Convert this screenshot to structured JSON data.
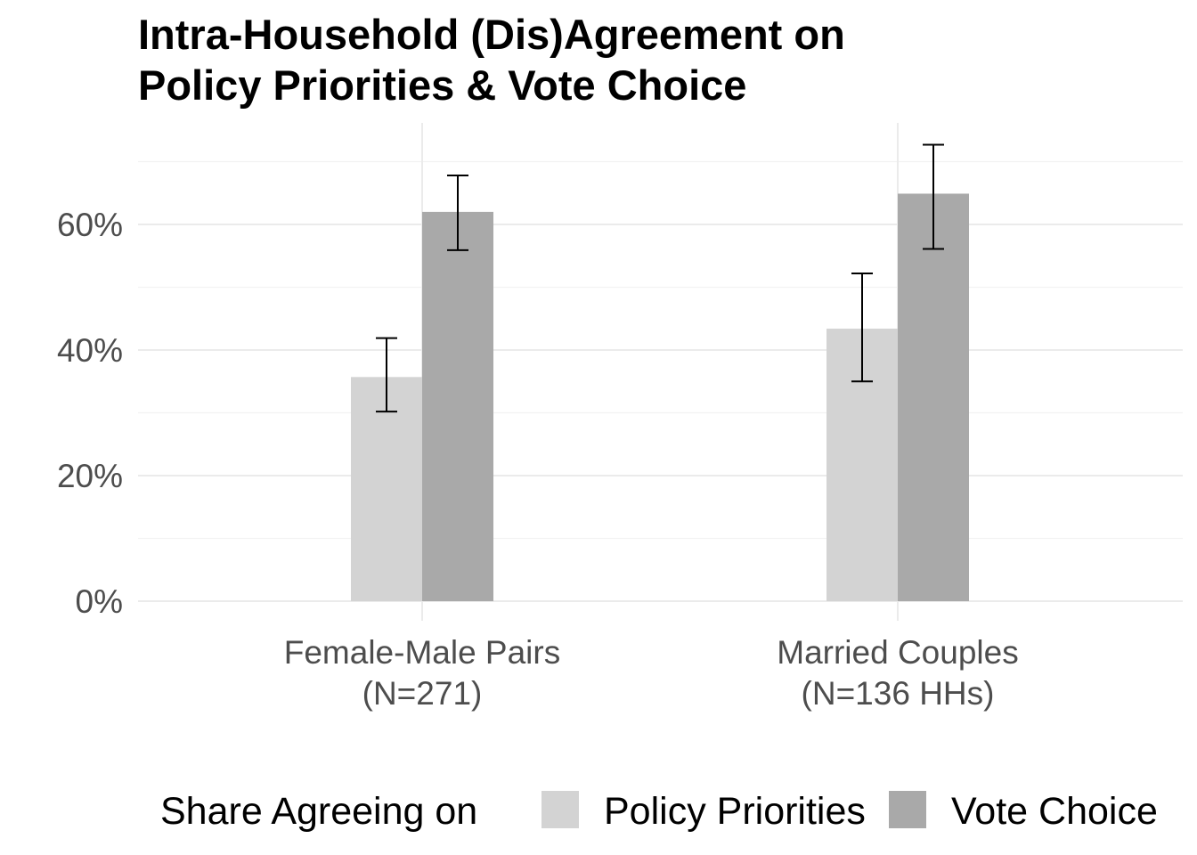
{
  "chart_data": {
    "type": "bar",
    "title": [
      "Intra-Household (Dis)Agreement on",
      "Policy Priorities & Vote Choice"
    ],
    "xlabel": "",
    "ylabel": "",
    "categories": [
      [
        "Female-Male Pairs",
        "(N=271)"
      ],
      [
        "Married Couples",
        "(N=136 HHs)"
      ]
    ],
    "series": [
      {
        "name": "Policy Priorities",
        "color": "#d3d3d3",
        "values": [
          35.7,
          43.4
        ],
        "ci_low": [
          30.2,
          35.0
        ],
        "ci_high": [
          41.9,
          52.2
        ]
      },
      {
        "name": "Vote Choice",
        "color": "#a9a9a9",
        "values": [
          62.0,
          64.9
        ],
        "ci_low": [
          55.9,
          56.1
        ],
        "ci_high": [
          67.8,
          72.7
        ]
      }
    ],
    "ylim": [
      0,
      75
    ],
    "yticks": [
      0,
      20,
      40,
      60
    ],
    "ytick_labels": [
      "0%",
      "20%",
      "40%",
      "60%"
    ],
    "grid": true,
    "legend": {
      "position": "bottom",
      "title": "Share Agreeing on",
      "entries": [
        "Policy Priorities",
        "Vote Choice"
      ]
    }
  }
}
